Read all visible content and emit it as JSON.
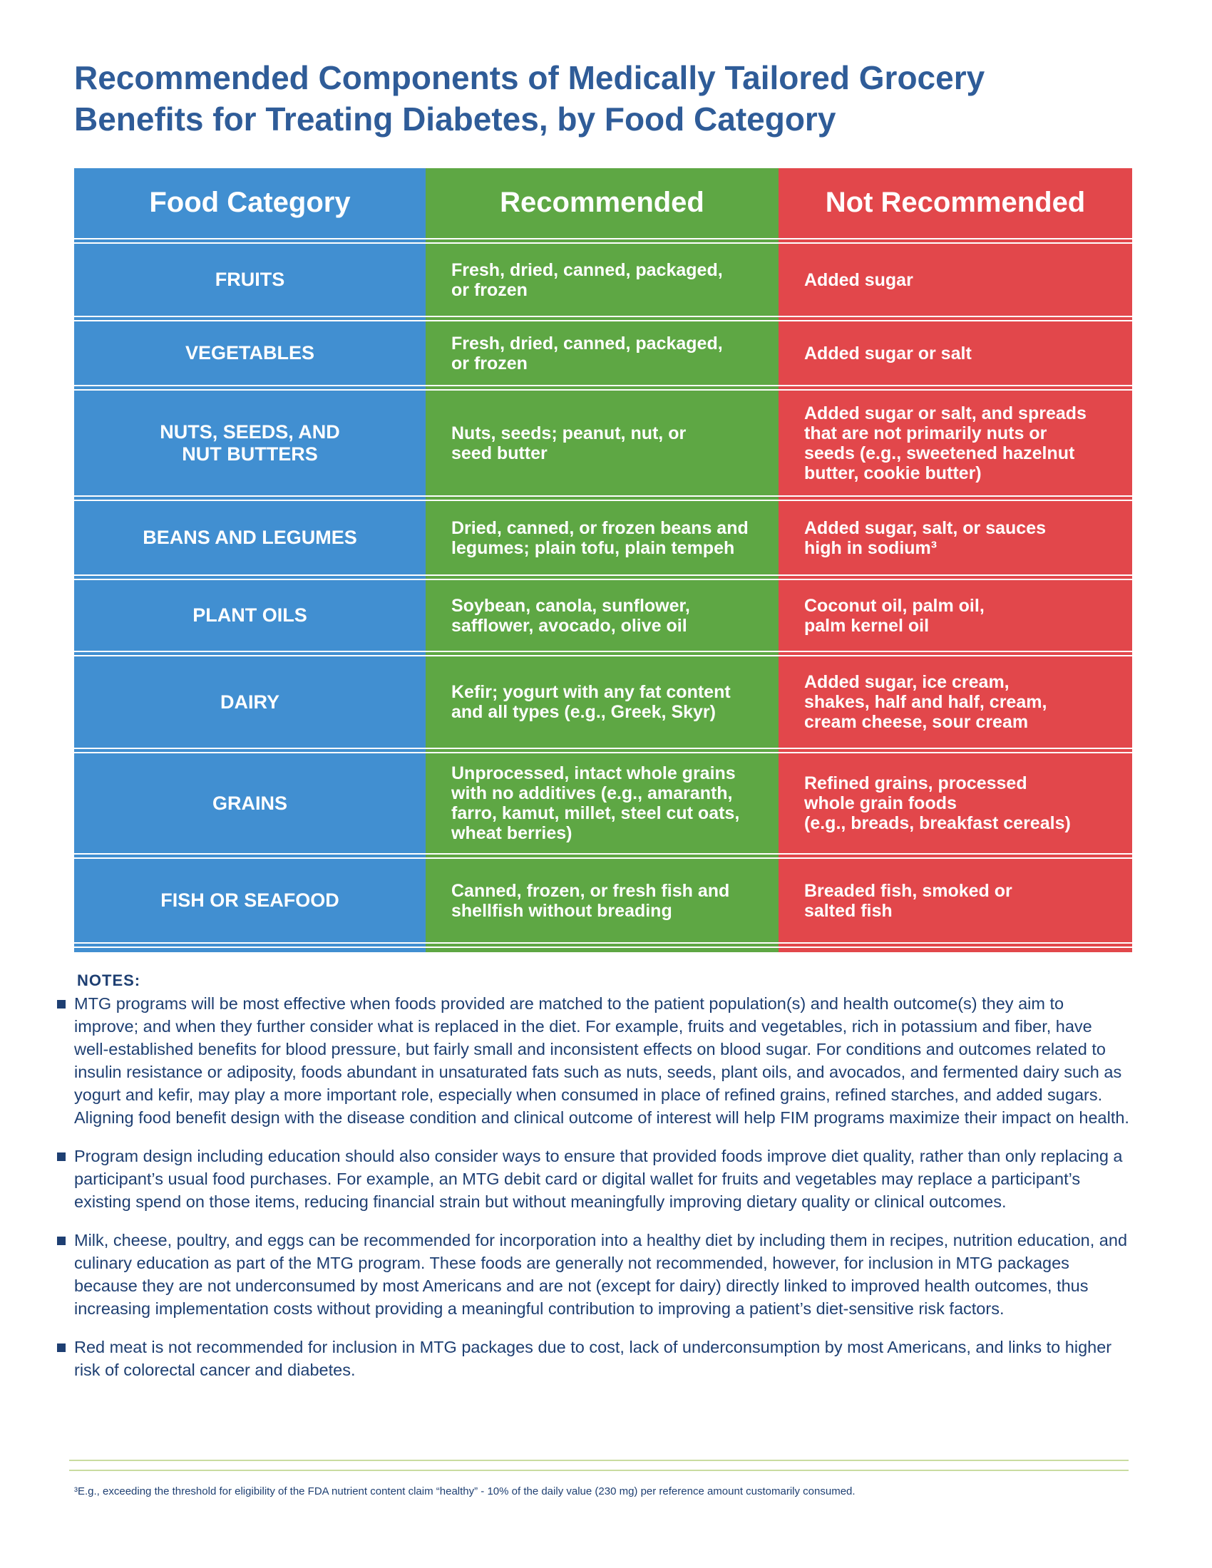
{
  "title": [
    "Recommended Components of Medically Tailored Grocery",
    "Benefits for Treating Diabetes, by Food Category"
  ],
  "table": {
    "header": [
      "Food Category",
      "Recommended",
      "Not Recommended"
    ],
    "rows": [
      [
        [
          "FRUITS"
        ],
        [
          "Fresh, dried, canned, packaged,",
          "or frozen"
        ],
        [
          "Added sugar"
        ]
      ],
      [
        [
          "VEGETABLES"
        ],
        [
          "Fresh, dried, canned, packaged,",
          "or frozen"
        ],
        [
          "Added sugar or salt"
        ]
      ],
      [
        [
          "NUTS, SEEDS, AND",
          "NUT BUTTERS"
        ],
        [
          "Nuts, seeds; peanut, nut, or",
          "seed butter"
        ],
        [
          "Added sugar or salt, and spreads",
          "that are not primarily nuts or",
          "seeds (e.g., sweetened hazelnut",
          "butter, cookie butter)"
        ]
      ],
      [
        [
          "BEANS AND LEGUMES"
        ],
        [
          "Dried, canned, or frozen beans and",
          "legumes; plain tofu, plain tempeh"
        ],
        [
          "Added sugar, salt, or sauces",
          "high in sodium³"
        ]
      ],
      [
        [
          "PLANT OILS"
        ],
        [
          "Soybean, canola, sunflower,",
          "safflower, avocado, olive oil"
        ],
        [
          "Coconut oil, palm oil,",
          "palm kernel oil"
        ]
      ],
      [
        [
          "DAIRY"
        ],
        [
          "Kefir; yogurt with any fat content",
          "and all types (e.g., Greek, Skyr)"
        ],
        [
          "Added sugar, ice cream,",
          "shakes, half and half, cream,",
          "cream cheese, sour cream"
        ]
      ],
      [
        [
          "GRAINS"
        ],
        [
          "Unprocessed, intact whole grains",
          "with no additives (e.g., amaranth,",
          "farro, kamut, millet, steel cut oats,",
          "wheat berries)"
        ],
        [
          "Refined grains, processed",
          "whole grain foods",
          "(e.g., breads, breakfast cereals)"
        ]
      ],
      [
        [
          "FISH OR SEAFOOD"
        ],
        [
          "Canned, frozen, or fresh fish and",
          "shellfish without breading"
        ],
        [
          "Breaded fish, smoked or",
          "salted fish"
        ]
      ]
    ]
  },
  "notes": {
    "heading": "NOTES:",
    "items": [
      "MTG programs will be most effective when foods provided are matched to the patient population(s) and health outcome(s) they aim to improve; and when they further consider what is replaced in the diet. For example, fruits and vegetables, rich in potassium and fiber, have well-established benefits for blood pressure, but fairly small and inconsistent effects on blood sugar. For conditions and outcomes related to insulin resistance or adiposity, foods abundant in unsaturated fats such as nuts, seeds, plant oils, and avocados, and fermented dairy such as yogurt and kefir, may play a more important role, especially when consumed in place of refined grains, refined starches, and added sugars. Aligning food benefit design with the disease condition and clinical outcome of interest will help FIM programs maximize their impact on health.",
      "Program design including education should also consider ways to ensure that provided foods improve diet quality, rather than only replacing a participant’s usual food purchases. For example, an MTG debit card or digital wallet for fruits and vegetables may replace a participant’s existing spend on those items, reducing financial strain but without meaningfully improving dietary quality or clinical outcomes.",
      "Milk, cheese, poultry, and eggs can be recommended for incorporation into a healthy diet by including them in recipes, nutrition education, and culinary education as part of the MTG program. These foods are generally not recommended, however, for inclusion in MTG packages because they are not underconsumed by most Americans and are not (except for dairy) directly linked to improved health outcomes, thus increasing implementation costs without providing a meaningful contribution to improving a patient’s diet-sensitive risk factors.",
      "Red meat is not recommended for inclusion in MTG packages due to cost, lack of underconsumption by most Americans, and links to higher risk of colorectal cancer and diabetes."
    ]
  },
  "footnote": "³E.g., exceeding the threshold for eligibility of the FDA nutrient content claim “healthy” - 10% of the daily value (230 mg) per reference amount customarily consumed."
}
